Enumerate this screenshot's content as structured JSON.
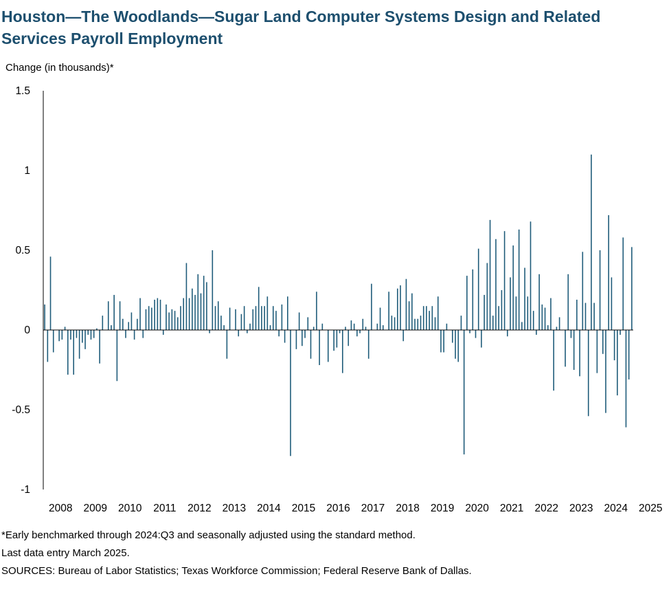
{
  "title": "Houston—The Woodlands—Sugar Land Computer Systems Design and Related Services Payroll Employment",
  "chart_data": {
    "type": "bar",
    "title": "Houston—The Woodlands—Sugar Land Computer Systems Design and Related Services Payroll Employment",
    "ylabel": "Change (in thousands)*",
    "xlabel": "",
    "ylim": [
      -1,
      1.5
    ],
    "yticks": [
      "1.5",
      "1",
      "0.5",
      "0",
      "-0.5",
      "-1"
    ],
    "ytick_values": [
      1.5,
      1,
      0.5,
      0,
      -0.5,
      -1
    ],
    "x_tick_labels": [
      "2008",
      "2009",
      "2010",
      "2011",
      "2012",
      "2013",
      "2014",
      "2015",
      "2016",
      "2017",
      "2018",
      "2019",
      "2020",
      "2021",
      "2022",
      "2023",
      "2024",
      "2025"
    ],
    "start_period": "2008-01",
    "end_period": "2025-03",
    "bar_color": "#1f5c7a",
    "values": [
      0.16,
      -0.2,
      0.46,
      -0.14,
      0.0,
      -0.07,
      -0.06,
      0.02,
      -0.28,
      -0.06,
      -0.28,
      -0.05,
      -0.18,
      -0.08,
      -0.12,
      -0.03,
      -0.06,
      -0.05,
      0.01,
      -0.21,
      0.09,
      0.0,
      0.18,
      0.03,
      0.22,
      -0.32,
      0.18,
      0.07,
      -0.05,
      0.05,
      0.11,
      -0.06,
      0.07,
      0.2,
      -0.05,
      0.13,
      0.15,
      0.14,
      0.19,
      0.2,
      0.19,
      -0.03,
      0.16,
      0.11,
      0.13,
      0.12,
      0.08,
      0.15,
      0.2,
      0.42,
      0.2,
      0.26,
      0.22,
      0.35,
      0.23,
      0.34,
      0.3,
      -0.02,
      0.5,
      0.15,
      0.18,
      0.09,
      0.03,
      -0.18,
      0.14,
      0.0,
      0.13,
      -0.04,
      0.1,
      0.15,
      -0.02,
      0.04,
      0.13,
      0.15,
      0.27,
      0.15,
      0.15,
      0.21,
      0.03,
      0.15,
      0.12,
      -0.04,
      0.16,
      -0.08,
      0.21,
      -0.79,
      0.0,
      -0.12,
      0.11,
      -0.1,
      -0.05,
      0.08,
      -0.18,
      0.02,
      0.24,
      -0.22,
      0.04,
      0.0,
      -0.2,
      0.0,
      -0.13,
      -0.11,
      -0.02,
      -0.27,
      0.02,
      -0.1,
      0.06,
      0.04,
      -0.04,
      -0.02,
      0.07,
      0.02,
      -0.18,
      0.29,
      0.0,
      0.04,
      0.14,
      0.03,
      0.0,
      0.24,
      0.09,
      0.08,
      0.26,
      0.28,
      -0.07,
      0.32,
      0.18,
      0.23,
      0.07,
      0.07,
      0.09,
      0.15,
      0.15,
      0.12,
      0.15,
      0.08,
      0.21,
      -0.14,
      -0.14,
      0.04,
      0.0,
      -0.08,
      -0.18,
      -0.2,
      0.09,
      -0.78,
      0.34,
      -0.02,
      0.38,
      -0.05,
      0.51,
      -0.11,
      0.22,
      0.42,
      0.69,
      0.09,
      0.57,
      0.15,
      0.25,
      0.62,
      -0.04,
      0.33,
      0.53,
      0.21,
      0.63,
      0.05,
      0.39,
      0.21,
      0.68,
      0.12,
      -0.03,
      0.35,
      0.16,
      0.14,
      0.03,
      0.2,
      -0.38,
      0.02,
      0.08,
      0.0,
      -0.23,
      0.35,
      -0.05,
      -0.25,
      0.19,
      -0.29,
      0.49,
      0.17,
      -0.54,
      1.1,
      0.17,
      -0.27,
      0.5,
      -0.15,
      -0.52,
      0.72,
      0.33,
      -0.19,
      -0.41,
      -0.03,
      0.58,
      -0.61,
      -0.31,
      0.52
    ]
  },
  "footnotes": {
    "note": "*Early benchmarked through 2024:Q3 and seasonally adjusted using the standard method.",
    "last_entry": "Last data entry March 2025.",
    "sources": "SOURCES: Bureau of Labor Statistics; Texas Workforce Commission; Federal Reserve Bank of Dallas."
  }
}
